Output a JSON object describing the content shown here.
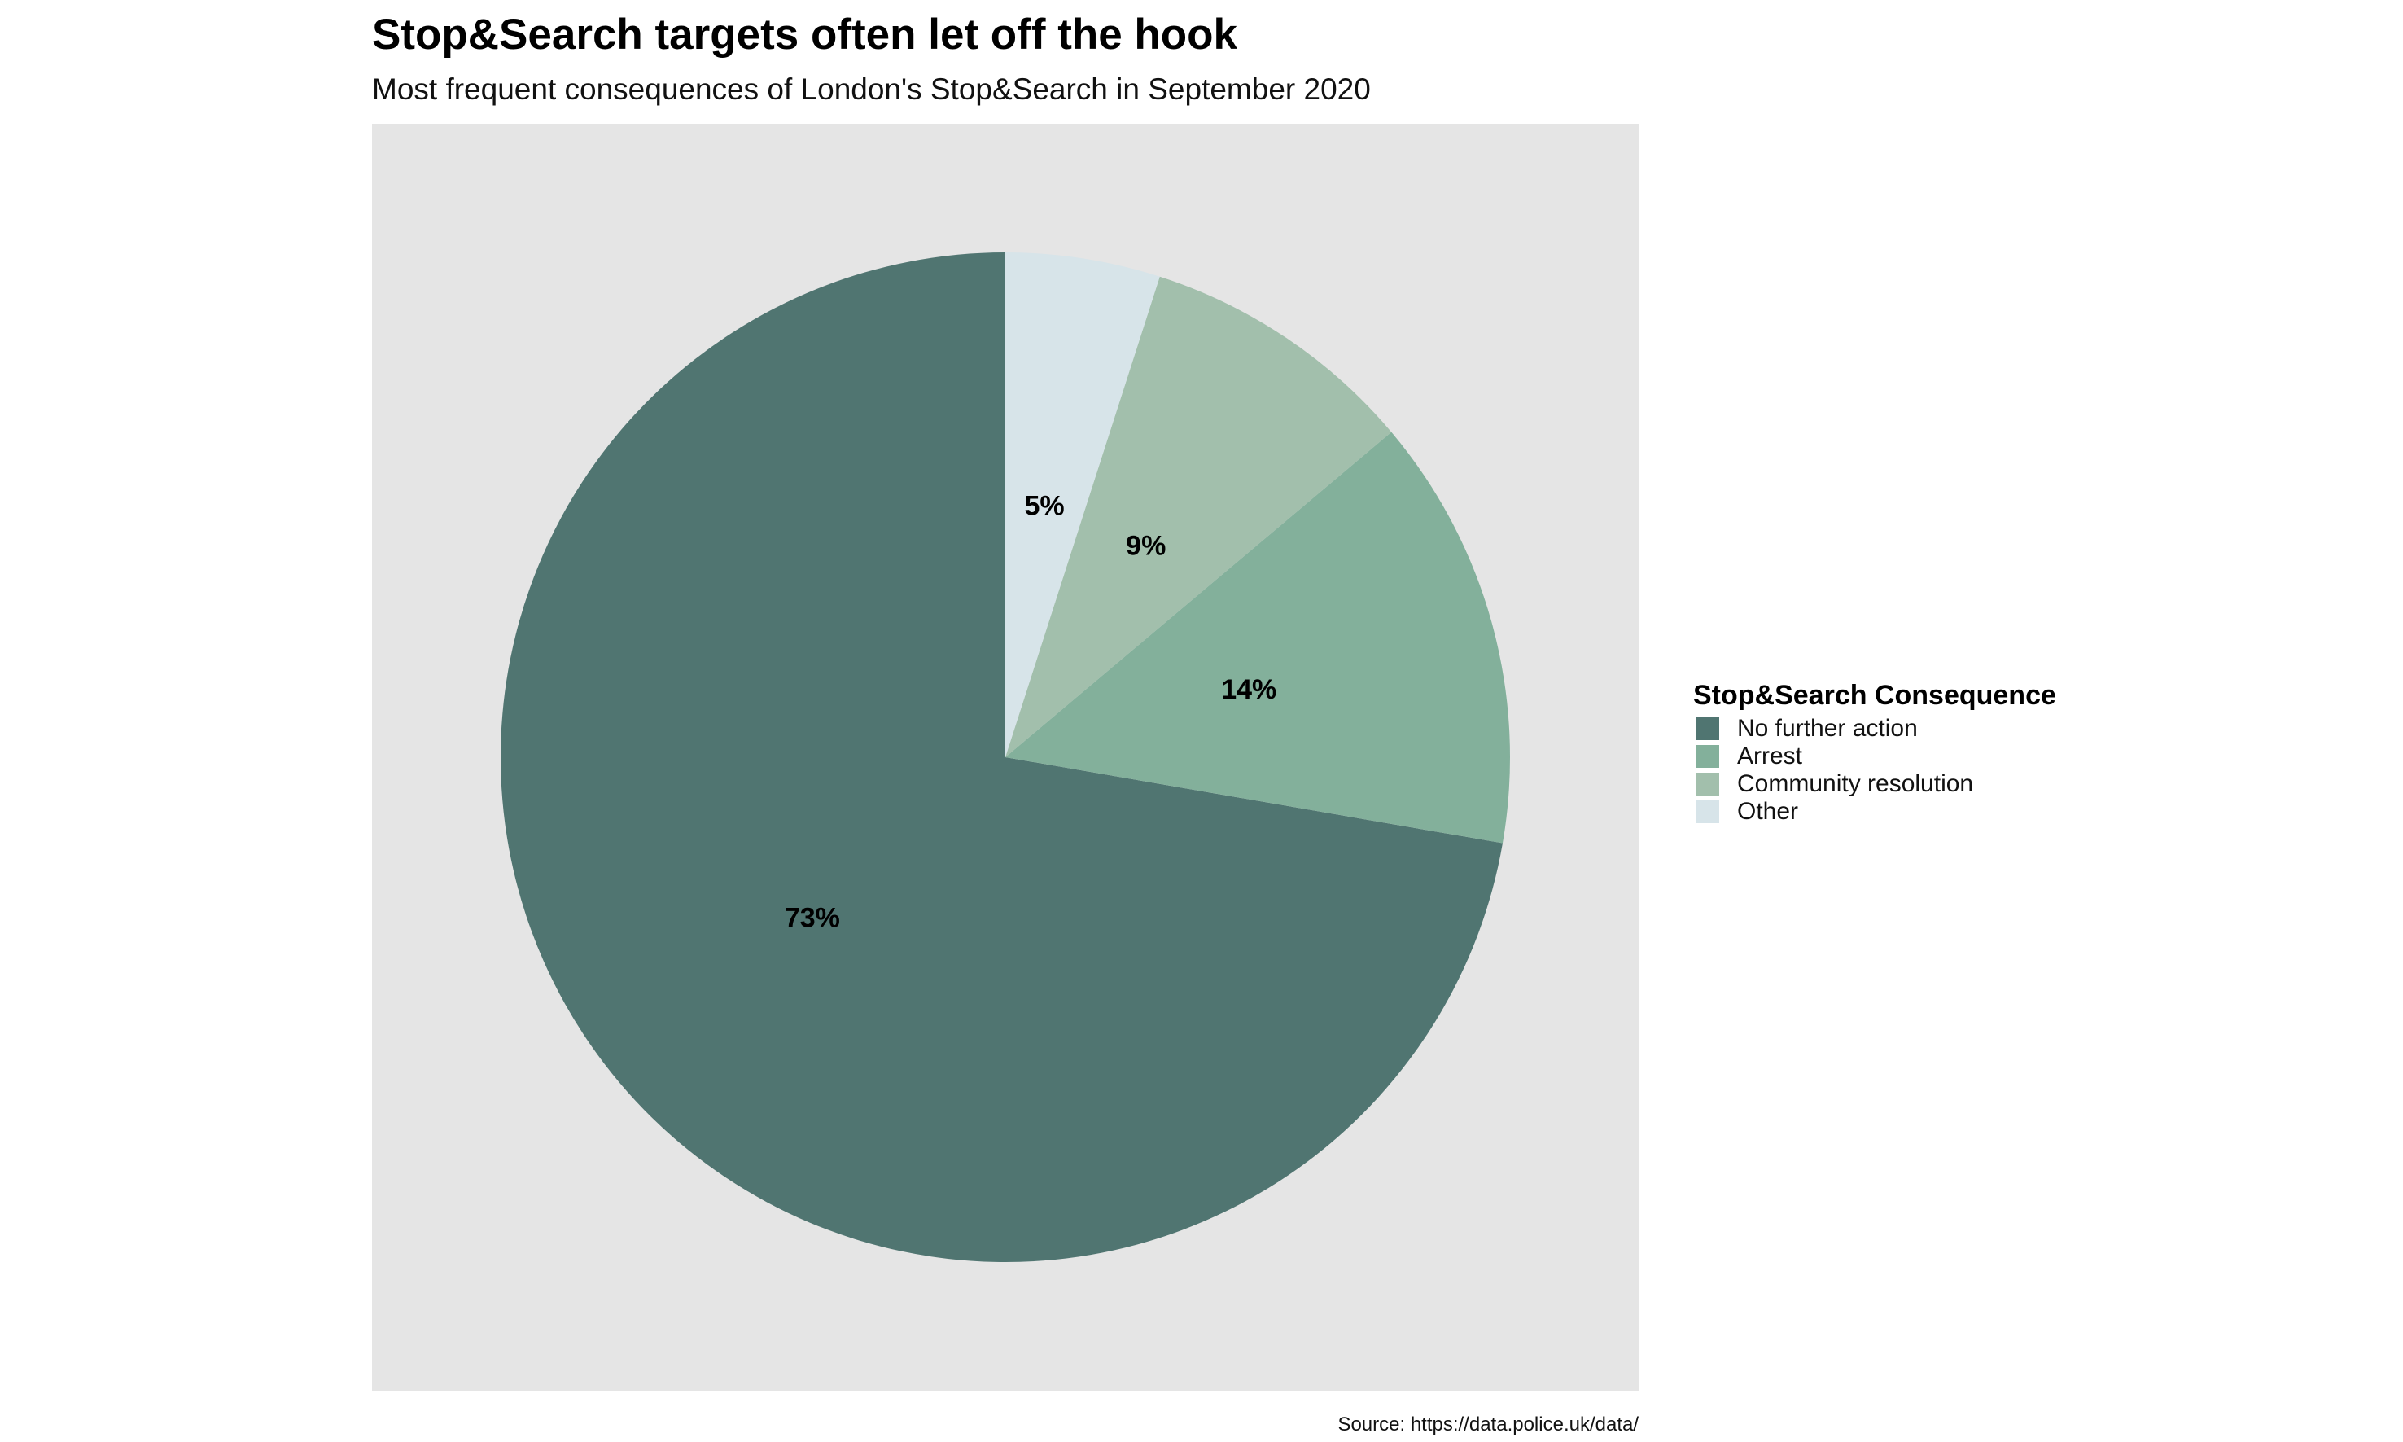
{
  "chart_data": {
    "type": "pie",
    "title": "Stop&Search targets often let off the hook",
    "subtitle": "Most frequent consequences of London's Stop&Search in September 2020",
    "legend_title": "Stop&Search Consequence",
    "legend_position": "right",
    "source": "Source: https://data.police.uk/data/",
    "start_angle": "12 o'clock",
    "direction": "counter-clockwise",
    "slices": [
      {
        "label": "No further action",
        "value": 73,
        "display": "73%",
        "color": "#507571"
      },
      {
        "label": "Arrest",
        "value": 14,
        "display": "14%",
        "color": "#83b09b"
      },
      {
        "label": "Community resolution",
        "value": 9,
        "display": "9%",
        "color": "#a2bfac"
      },
      {
        "label": "Other",
        "value": 5,
        "display": "5%",
        "color": "#d7e4e9"
      }
    ],
    "panel_background": "#e5e5e5"
  }
}
